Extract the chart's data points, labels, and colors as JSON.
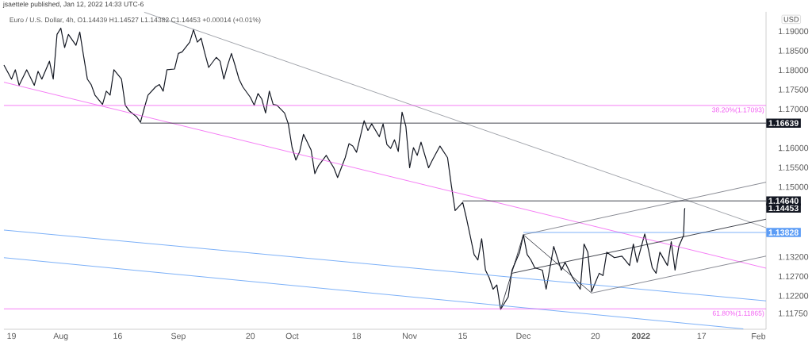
{
  "chart_data": {
    "type": "line",
    "title": "Euro / U.S. Dollar, 4h, O1.14439 H1.14527 L1.14382 C1.14453 +0.00014 (+0.01%)",
    "ylabel": "USD",
    "annotations": [
      "jsaettele published, Jan 12, 2022 14:33 UTC-6"
    ],
    "xlim": [
      "2021-07-17",
      "2022-02-03"
    ],
    "ylim": [
      1.1134,
      1.195
    ],
    "xticks": [
      {
        "value": "2021-07-19",
        "label": "19"
      },
      {
        "value": "2021-08-01",
        "label": "Aug"
      },
      {
        "value": "2021-08-16",
        "label": "16"
      },
      {
        "value": "2021-09-01",
        "label": "Sep"
      },
      {
        "value": "2021-09-20",
        "label": "20"
      },
      {
        "value": "2021-10-01",
        "label": "Oct"
      },
      {
        "value": "2021-10-18",
        "label": "18"
      },
      {
        "value": "2021-11-01",
        "label": "Nov"
      },
      {
        "value": "2021-11-15",
        "label": "15"
      },
      {
        "value": "2021-12-01",
        "label": "Dec"
      },
      {
        "value": "2021-12-20",
        "label": "20"
      },
      {
        "value": "2022-01-01",
        "label": "**2022**"
      },
      {
        "value": "2022-01-17",
        "label": "17"
      },
      {
        "value": "2022-02-01",
        "label": "Feb"
      }
    ],
    "yticks": [
      {
        "value": 1.19,
        "label": "1.19000"
      },
      {
        "value": 1.185,
        "label": "1.18500"
      },
      {
        "value": 1.18,
        "label": "1.18000"
      },
      {
        "value": 1.175,
        "label": "1.17500"
      },
      {
        "value": 1.17,
        "label": "1.17000"
      },
      {
        "value": 1.16,
        "label": "1.16000"
      },
      {
        "value": 1.155,
        "label": "1.15500"
      },
      {
        "value": 1.15,
        "label": "1.15000"
      },
      {
        "value": 1.132,
        "label": "1.13200"
      },
      {
        "value": 1.127,
        "label": "1.12700"
      },
      {
        "value": 1.122,
        "label": "1.12200"
      },
      {
        "value": 1.1175,
        "label": "1.11750"
      }
    ],
    "ref_lines": [
      {
        "axis": "y",
        "value": 1.17093,
        "label": "38.20%(1.17093)",
        "color": "#f25cf2"
      },
      {
        "axis": "y",
        "value": 1.11865,
        "label": "61.80%(1.11865)",
        "color": "#f25cf2"
      }
    ],
    "series": [
      {
        "name": "1.14453",
        "color": "#131722",
        "x": [
          "2021-07-17",
          "2021-07-19",
          "2021-07-20",
          "2021-07-21",
          "2021-07-23",
          "2021-07-25",
          "2021-07-26",
          "2021-07-27",
          "2021-07-29",
          "2021-07-30",
          "2021-07-31",
          "2021-08-01",
          "2021-08-02",
          "2021-08-03",
          "2021-08-05",
          "2021-08-06",
          "2021-08-07",
          "2021-08-08",
          "2021-08-09",
          "2021-08-10",
          "2021-08-12",
          "2021-08-13",
          "2021-08-14",
          "2021-08-15",
          "2021-08-17",
          "2021-08-18",
          "2021-08-19",
          "2021-08-21",
          "2021-08-22",
          "2021-08-23",
          "2021-08-24",
          "2021-08-26",
          "2021-08-27",
          "2021-08-28",
          "2021-08-29",
          "2021-08-31",
          "2021-09-01",
          "2021-09-02",
          "2021-09-04",
          "2021-09-05",
          "2021-09-06",
          "2021-09-07",
          "2021-09-08",
          "2021-09-09",
          "2021-09-11",
          "2021-09-12",
          "2021-09-13",
          "2021-09-14",
          "2021-09-15",
          "2021-09-16",
          "2021-09-17",
          "2021-09-18",
          "2021-09-20",
          "2021-09-21",
          "2021-09-22",
          "2021-09-23",
          "2021-09-24",
          "2021-09-25",
          "2021-09-26",
          "2021-09-27",
          "2021-09-29",
          "2021-09-30",
          "2021-10-01",
          "2021-10-02",
          "2021-10-03",
          "2021-10-04",
          "2021-10-06",
          "2021-10-07",
          "2021-10-08",
          "2021-10-10",
          "2021-10-12",
          "2021-10-13",
          "2021-10-15",
          "2021-10-16",
          "2021-10-17",
          "2021-10-18",
          "2021-10-20",
          "2021-10-21",
          "2021-10-22",
          "2021-10-24",
          "2021-10-25",
          "2021-10-26",
          "2021-10-27",
          "2021-10-28",
          "2021-10-29",
          "2021-10-30",
          "2021-10-31",
          "2021-11-01",
          "2021-11-02",
          "2021-11-03",
          "2021-11-04",
          "2021-11-06",
          "2021-11-07",
          "2021-11-09",
          "2021-11-11",
          "2021-11-12",
          "2021-11-13",
          "2021-11-15",
          "2021-11-16",
          "2021-11-17",
          "2021-11-18",
          "2021-11-19",
          "2021-11-20",
          "2021-11-21",
          "2021-11-22",
          "2021-11-23",
          "2021-11-24",
          "2021-11-25",
          "2021-11-27",
          "2021-11-28",
          "2021-11-30",
          "2021-12-01",
          "2021-12-02",
          "2021-12-03",
          "2021-12-04",
          "2021-12-06",
          "2021-12-07",
          "2021-12-09",
          "2021-12-11",
          "2021-12-12",
          "2021-12-14",
          "2021-12-16",
          "2021-12-17",
          "2021-12-18",
          "2021-12-19",
          "2021-12-21",
          "2021-12-22",
          "2021-12-23",
          "2021-12-25",
          "2021-12-27",
          "2021-12-29",
          "2021-12-30",
          "2021-12-31",
          "2022-01-02",
          "2022-01-03",
          "2022-01-04",
          "2022-01-05",
          "2022-01-06",
          "2022-01-08",
          "2022-01-09",
          "2022-01-10",
          "2022-01-11",
          "2022-01-12T06:00",
          "2022-01-12T12:00",
          "2022-01-12T14:00"
        ],
        "values": [
          1.1813,
          1.1777,
          1.1801,
          1.1761,
          1.1801,
          1.1761,
          1.1797,
          1.1777,
          1.1823,
          1.1777,
          1.1892,
          1.1908,
          1.1858,
          1.1892,
          1.1864,
          1.1898,
          1.1837,
          1.1777,
          1.1763,
          1.1736,
          1.1712,
          1.1746,
          1.1736,
          1.1801,
          1.1777,
          1.171,
          1.1696,
          1.168,
          1.1666,
          1.1702,
          1.1736,
          1.1757,
          1.1763,
          1.1746,
          1.1801,
          1.1803,
          1.1843,
          1.1847,
          1.1872,
          1.1904,
          1.1872,
          1.1882,
          1.1843,
          1.1807,
          1.1833,
          1.1823,
          1.1777,
          1.1813,
          1.1843,
          1.1811,
          1.1777,
          1.1757,
          1.173,
          1.171,
          1.174,
          1.1726,
          1.169,
          1.1746,
          1.1712,
          1.171,
          1.169,
          1.1662,
          1.1601,
          1.1569,
          1.1591,
          1.1635,
          1.1595,
          1.1534,
          1.1555,
          1.1581,
          1.1549,
          1.1524,
          1.1575,
          1.1611,
          1.1605,
          1.1589,
          1.167,
          1.1645,
          1.1662,
          1.1629,
          1.1662,
          1.1609,
          1.1599,
          1.1621,
          1.1591,
          1.1692,
          1.1656,
          1.1549,
          1.1601,
          1.1581,
          1.1615,
          1.1549,
          1.1569,
          1.1605,
          1.1575,
          1.1504,
          1.1439,
          1.146,
          1.1419,
          1.1373,
          1.1326,
          1.1312,
          1.1367,
          1.1286,
          1.1266,
          1.1237,
          1.1248,
          1.1185,
          1.1217,
          1.1286,
          1.1332,
          1.1377,
          1.1326,
          1.1312,
          1.1292,
          1.1286,
          1.1237,
          1.1347,
          1.1286,
          1.1306,
          1.1266,
          1.1237,
          1.1353,
          1.1332,
          1.1231,
          1.1278,
          1.1272,
          1.1332,
          1.1318,
          1.1322,
          1.1298,
          1.1353,
          1.1306,
          1.1379,
          1.1338,
          1.1292,
          1.1278,
          1.1332,
          1.1298,
          1.1359,
          1.1286,
          1.1347,
          1.1375,
          1.144,
          1.14453
        ]
      },
      {
        "type": "line",
        "color": "#8a8d96",
        "x": [
          "2021-08-23",
          "2022-02-03"
        ],
        "values": [
          1.1949,
          1.1395
        ]
      },
      {
        "type": "line",
        "color": "#f25cf2",
        "x": [
          "2021-07-17",
          "2022-02-03"
        ],
        "values": [
          1.1769,
          1.1291
        ]
      },
      {
        "type": "line",
        "color": "#5b9cf6",
        "x": [
          "2021-07-17",
          "2022-02-03"
        ],
        "values": [
          1.1389,
          1.1207
        ]
      },
      {
        "type": "line",
        "color": "#5b9cf6",
        "x": [
          "2021-07-17",
          "2022-01-28"
        ],
        "values": [
          1.1318,
          1.1135
        ]
      },
      {
        "type": "line",
        "color": "#131722",
        "x": [
          "2021-11-25",
          "2021-12-01",
          "2021-12-19"
        ],
        "values": [
          1.1185,
          1.1377,
          1.1227
        ]
      },
      {
        "type": "line",
        "color": "#131722",
        "x": [
          "2021-11-28",
          "2022-02-03"
        ],
        "values": [
          1.1278,
          1.1417
        ]
      },
      {
        "type": "line",
        "color": "#6a6d78",
        "x": [
          "2021-12-01",
          "2022-02-03"
        ],
        "values": [
          1.1377,
          1.1512
        ]
      },
      {
        "type": "line",
        "color": "#6a6d78",
        "x": [
          "2021-12-19",
          "2022-02-03"
        ],
        "values": [
          1.1227,
          1.1322
        ]
      },
      {
        "type": "line",
        "name": "1.16639",
        "color": "#131722",
        "x": [
          "2021-08-22",
          "2022-02-03"
        ],
        "values": [
          1.16639,
          1.16639
        ]
      },
      {
        "type": "line",
        "name": "1.14640",
        "color": "#131722",
        "x": [
          "2021-11-15",
          "2022-02-03"
        ],
        "values": [
          1.1464,
          1.1464
        ]
      },
      {
        "type": "line",
        "name": "1.13828",
        "color": "#5b9cf6",
        "x": [
          "2021-12-01",
          "2022-02-03"
        ],
        "values": [
          1.13828,
          1.13828
        ]
      }
    ]
  }
}
